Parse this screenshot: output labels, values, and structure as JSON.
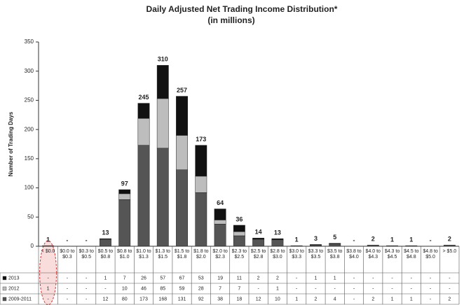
{
  "chart_data": {
    "type": "stacked_bar",
    "title": "Daily Adjusted Net Trading Income Distribution*",
    "subtitle": "(in millions)",
    "y_label": "Number of Trading Days",
    "categories": [
      "< $0.0",
      "$0.0 to $0.3",
      "$0.3 to $0.5",
      "$0.5 to $0.8",
      "$0.8 to $1.0",
      "$1.0 to $1.3",
      "$1.3 to $1.5",
      "$1.5 to $1.8",
      "$1.8 to $2.0",
      "$2.0 to $2.3",
      "$2.3 to $2.5",
      "$2.5 to $2.8",
      "$2.8 to $3.0",
      "$3.0 to $3.3",
      "$3.3 to $3.5",
      "$3.5 to $3.8",
      "$3.8 to $4.0",
      "$4.0 to $4.3",
      "$4.3 to $4.5",
      "$4.5 to $4.8",
      "$4.8 to $5.0",
      "> $5.0"
    ],
    "total_labels": [
      "1",
      "-",
      "-",
      "13",
      "97",
      "245",
      "310",
      "257",
      "173",
      "64",
      "36",
      "14",
      "13",
      "1",
      "3",
      "5",
      "-",
      "2",
      "1",
      "1",
      "-",
      "2"
    ],
    "series": [
      {
        "name": "2013",
        "color": "#111111",
        "values": [
          0,
          0,
          0,
          1,
          7,
          26,
          57,
          67,
          53,
          19,
          11,
          2,
          2,
          0,
          1,
          1,
          0,
          0,
          0,
          0,
          0,
          0
        ],
        "value_labels": [
          "-",
          "-",
          "-",
          "1",
          "7",
          "26",
          "57",
          "67",
          "53",
          "19",
          "11",
          "2",
          "2",
          "-",
          "1",
          "1",
          "-",
          "-",
          "-",
          "-",
          "-",
          "-"
        ]
      },
      {
        "name": "2012",
        "color": "#bdbdbd",
        "values": [
          1,
          0,
          0,
          0,
          10,
          46,
          85,
          59,
          28,
          7,
          7,
          0,
          1,
          0,
          0,
          0,
          0,
          0,
          0,
          0,
          0,
          0
        ],
        "value_labels": [
          "1",
          "-",
          "-",
          "-",
          "10",
          "46",
          "85",
          "59",
          "28",
          "7",
          "7",
          "-",
          "1",
          "-",
          "-",
          "-",
          "-",
          "-",
          "-",
          "-",
          "-",
          "-"
        ]
      },
      {
        "name": "2009-2011",
        "color": "#555555",
        "values": [
          0,
          0,
          0,
          12,
          80,
          173,
          168,
          131,
          92,
          38,
          18,
          12,
          10,
          1,
          2,
          4,
          0,
          2,
          1,
          1,
          0,
          2
        ],
        "value_labels": [
          "-",
          "-",
          "-",
          "12",
          "80",
          "173",
          "168",
          "131",
          "92",
          "38",
          "18",
          "12",
          "10",
          "1",
          "2",
          "4",
          "-",
          "2",
          "1",
          "1",
          "-",
          "2"
        ]
      }
    ],
    "ylim": [
      0,
      350
    ],
    "yticks": [
      0,
      50,
      100,
      150,
      200,
      250,
      300,
      350
    ]
  }
}
